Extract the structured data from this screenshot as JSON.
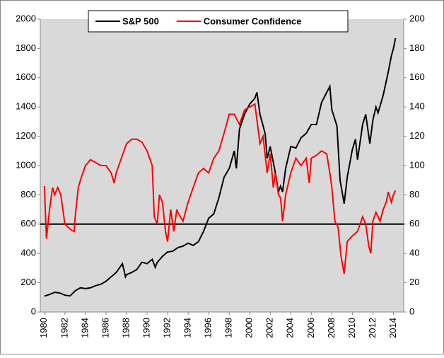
{
  "chart_data": {
    "type": "line",
    "xlim": [
      1979.6,
      2015
    ],
    "xticks": [
      1980,
      1982,
      1984,
      1986,
      1988,
      1990,
      1992,
      1994,
      1996,
      1998,
      2000,
      2002,
      2004,
      2006,
      2008,
      2010,
      2012,
      2014
    ],
    "ylim": [
      0,
      2000
    ],
    "yticks": [
      0,
      200,
      400,
      600,
      800,
      1000,
      1200,
      1400,
      1600,
      1800,
      2000
    ],
    "y2lim": [
      0,
      200
    ],
    "y2ticks": [
      0,
      20,
      40,
      60,
      80,
      100,
      120,
      140,
      160,
      180,
      200
    ],
    "hline": {
      "value": 600,
      "color": "#000000"
    },
    "background": "#d9d9d9",
    "legend": "top",
    "series": [
      {
        "name": "S&P 500",
        "color": "#000000",
        "x": [
          1980,
          1980.5,
          1981,
          1981.5,
          1982,
          1982.5,
          1983,
          1983.5,
          1984,
          1984.5,
          1985,
          1985.5,
          1986,
          1986.5,
          1987,
          1987.6,
          1987.9,
          1988,
          1988.5,
          1989,
          1989.5,
          1990,
          1990.5,
          1990.8,
          1991,
          1991.5,
          1992,
          1992.5,
          1993,
          1993.5,
          1994,
          1994.5,
          1995,
          1995.5,
          1996,
          1996.5,
          1997,
          1997.5,
          1998,
          1998.5,
          1998.7,
          1999,
          1999.5,
          2000,
          2000.5,
          2000.7,
          2001,
          2001.5,
          2001.7,
          2002,
          2002.5,
          2002.8,
          2003,
          2003.2,
          2003.5,
          2004,
          2004.5,
          2005,
          2005.5,
          2006,
          2006.5,
          2007,
          2007.5,
          2007.8,
          2008,
          2008.5,
          2008.8,
          2009.2,
          2009.5,
          2010,
          2010.3,
          2010.5,
          2011,
          2011.3,
          2011.7,
          2012,
          2012.3,
          2012.5,
          2013,
          2013.5,
          2013.8,
          2014,
          2014.2
        ],
        "values": [
          108,
          120,
          135,
          130,
          115,
          110,
          145,
          165,
          160,
          165,
          180,
          190,
          210,
          240,
          270,
          330,
          240,
          255,
          270,
          290,
          340,
          330,
          360,
          305,
          340,
          380,
          410,
          415,
          440,
          450,
          470,
          455,
          480,
          550,
          640,
          670,
          780,
          920,
          980,
          1100,
          980,
          1250,
          1350,
          1420,
          1460,
          1500,
          1350,
          1220,
          1050,
          1130,
          950,
          820,
          860,
          820,
          980,
          1130,
          1120,
          1190,
          1220,
          1280,
          1280,
          1430,
          1500,
          1540,
          1380,
          1270,
          900,
          740,
          920,
          1110,
          1180,
          1040,
          1280,
          1350,
          1150,
          1310,
          1400,
          1360,
          1480,
          1640,
          1750,
          1800,
          1870
        ]
      },
      {
        "name": "Consumer Confidence",
        "color": "#ff0000",
        "axis": "y2",
        "x": [
          1980,
          1980.2,
          1980.5,
          1980.8,
          1981,
          1981.3,
          1981.6,
          1981.8,
          1982,
          1982.3,
          1982.6,
          1982.9,
          1983,
          1983.3,
          1983.6,
          1984,
          1984.5,
          1985,
          1985.5,
          1986,
          1986.5,
          1986.8,
          1987,
          1987.5,
          1988,
          1988.5,
          1989,
          1989.5,
          1990,
          1990.5,
          1990.7,
          1991,
          1991.2,
          1991.5,
          1991.8,
          1992,
          1992.3,
          1992.6,
          1992.9,
          1993,
          1993.5,
          1994,
          1994.5,
          1995,
          1995.5,
          1996,
          1996.5,
          1997,
          1997.5,
          1998,
          1998.5,
          1999,
          1999.5,
          2000,
          2000.5,
          2001,
          2001.3,
          2001.7,
          2002,
          2002.3,
          2002.5,
          2002.8,
          2003,
          2003.2,
          2003.5,
          2004,
          2004.5,
          2005,
          2005.5,
          2005.8,
          2006,
          2006.5,
          2007,
          2007.5,
          2007.8,
          2008,
          2008.3,
          2008.6,
          2008.9,
          2009.2,
          2009.5,
          2010,
          2010.5,
          2011,
          2011.3,
          2011.6,
          2011.8,
          2012,
          2012.3,
          2012.7,
          2013,
          2013.3,
          2013.5,
          2013.8,
          2014,
          2014.2
        ],
        "values": [
          86,
          50,
          70,
          85,
          80,
          85,
          80,
          70,
          60,
          58,
          56,
          55,
          65,
          85,
          92,
          100,
          104,
          102,
          100,
          100,
          95,
          88,
          95,
          105,
          115,
          118,
          118,
          116,
          110,
          100,
          65,
          60,
          80,
          75,
          55,
          48,
          70,
          55,
          70,
          68,
          62,
          75,
          85,
          95,
          98,
          95,
          105,
          110,
          122,
          135,
          135,
          128,
          138,
          140,
          142,
          115,
          120,
          95,
          108,
          85,
          95,
          80,
          78,
          62,
          80,
          95,
          105,
          100,
          105,
          88,
          105,
          107,
          110,
          108,
          95,
          85,
          62,
          58,
          38,
          26,
          48,
          52,
          55,
          65,
          60,
          45,
          40,
          62,
          68,
          62,
          70,
          75,
          82,
          75,
          80,
          83
        ]
      }
    ]
  }
}
